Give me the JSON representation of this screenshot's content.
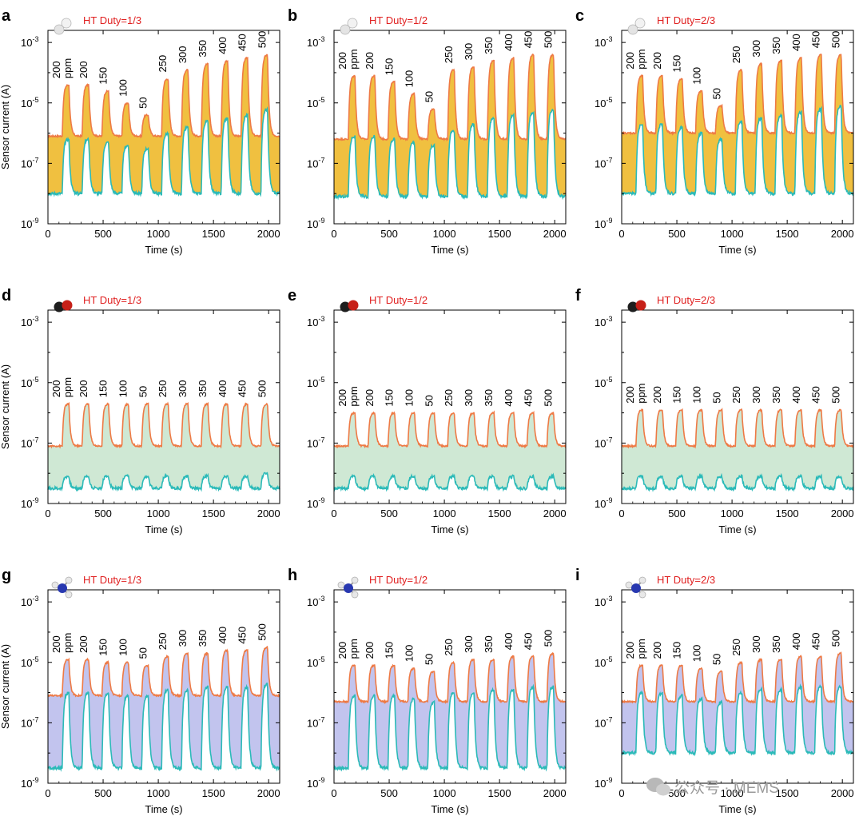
{
  "colors": {
    "high_line": "#ee7a45",
    "low_line": "#2bbab8",
    "fill_h2": "#f0c040",
    "fill_co": "#cfe8d4",
    "fill_nh3": "#c2c4ee",
    "duty_text": "#e02020"
  },
  "labels": {
    "y_axis_title": "Sensor current (A)",
    "x_axis_title": "Time (s)",
    "ppm_unit": "ppm",
    "y_tick_exponent_labels": [
      "-3",
      "-5",
      "-7",
      "-9"
    ],
    "x_tick_labels": [
      "0",
      "500",
      "1000",
      "1500",
      "2000"
    ]
  },
  "watermark": {
    "text": "公众号 · MEMS",
    "icon": "wechat-icon"
  },
  "chart_data": [
    {
      "panel": "a",
      "type": "line",
      "gas": "H2",
      "gas_icon": "h2-molecule-icon",
      "duty_label": "HT Duty=1/3",
      "xlabel": "Time (s)",
      "ylabel": "Sensor current (A)",
      "xlim": [
        0,
        2100
      ],
      "ylim_log10": [
        -9,
        -2.6
      ],
      "concentration_labels": [
        "200",
        "200",
        "150",
        "100",
        "50",
        "250",
        "300",
        "350",
        "400",
        "450",
        "500"
      ],
      "pulse_times": [
        130,
        310,
        490,
        670,
        850,
        1030,
        1210,
        "1390",
        1570,
        1750,
        1930
      ],
      "series": [
        {
          "name": "upper",
          "baseline_log10": -6.1,
          "peak_log10": [
            -4.4,
            -4.4,
            -4.6,
            -5.0,
            -5.4,
            -4.2,
            -3.9,
            -3.7,
            -3.6,
            -3.5,
            -3.4
          ]
        },
        {
          "name": "lower",
          "baseline_log10": -8.0,
          "peak_log10": [
            -6.2,
            -6.2,
            -6.3,
            -6.4,
            -6.5,
            -6.0,
            -5.8,
            -5.6,
            -5.5,
            -5.4,
            -5.2
          ]
        }
      ]
    },
    {
      "panel": "b",
      "type": "line",
      "gas": "H2",
      "gas_icon": "h2-molecule-icon",
      "duty_label": "HT Duty=1/2",
      "xlabel": "Time (s)",
      "ylabel": "Sensor current (A)",
      "xlim": [
        0,
        2100
      ],
      "ylim_log10": [
        -9,
        -2.6
      ],
      "concentration_labels": [
        "200",
        "200",
        "150",
        "100",
        "50",
        "250",
        "300",
        "350",
        "400",
        "450",
        "500"
      ],
      "pulse_times": [
        130,
        310,
        490,
        670,
        850,
        1030,
        1210,
        1390,
        1570,
        1750,
        1930
      ],
      "series": [
        {
          "name": "upper",
          "baseline_log10": -6.2,
          "peak_log10": [
            -4.1,
            -4.1,
            -4.3,
            -4.7,
            -5.2,
            -3.9,
            -3.8,
            -3.6,
            -3.5,
            -3.4,
            -3.4
          ]
        },
        {
          "name": "lower",
          "baseline_log10": -8.1,
          "peak_log10": [
            -6.1,
            -6.1,
            -6.2,
            -6.3,
            -6.4,
            -5.9,
            -5.7,
            -5.5,
            -5.4,
            -5.3,
            -5.2
          ]
        }
      ]
    },
    {
      "panel": "c",
      "type": "line",
      "gas": "H2",
      "gas_icon": "h2-molecule-icon",
      "duty_label": "HT Duty=2/3",
      "xlabel": "Time (s)",
      "ylabel": "Sensor current (A)",
      "xlim": [
        0,
        2100
      ],
      "ylim_log10": [
        -9,
        -2.6
      ],
      "concentration_labels": [
        "200",
        "200",
        "150",
        "100",
        "50",
        "250",
        "300",
        "350",
        "400",
        "450",
        "500"
      ],
      "pulse_times": [
        130,
        310,
        490,
        670,
        850,
        1030,
        1210,
        1390,
        1570,
        1750,
        1930
      ],
      "series": [
        {
          "name": "upper",
          "baseline_log10": -6.0,
          "peak_log10": [
            -4.1,
            -4.1,
            -4.2,
            -4.6,
            -5.1,
            -3.9,
            -3.7,
            -3.6,
            -3.5,
            -3.4,
            -3.4
          ]
        },
        {
          "name": "lower",
          "baseline_log10": -8.0,
          "peak_log10": [
            -5.7,
            -5.7,
            -5.8,
            -6.0,
            -6.2,
            -5.6,
            -5.5,
            -5.4,
            -5.3,
            -5.2,
            -5.1
          ]
        }
      ]
    },
    {
      "panel": "d",
      "type": "line",
      "gas": "CO",
      "gas_icon": "co-molecule-icon",
      "duty_label": "HT Duty=1/3",
      "xlabel": "Time (s)",
      "ylabel": "Sensor current (A)",
      "xlim": [
        0,
        2100
      ],
      "ylim_log10": [
        -9,
        -2.6
      ],
      "concentration_labels": [
        "200",
        "200",
        "150",
        "100",
        "50",
        "250",
        "300",
        "350",
        "400",
        "450",
        "500"
      ],
      "pulse_times": [
        130,
        310,
        490,
        670,
        850,
        1030,
        1210,
        1390,
        1570,
        1750,
        1930
      ],
      "series": [
        {
          "name": "upper",
          "baseline_log10": -7.1,
          "peak_log10": [
            -5.7,
            -5.7,
            -5.7,
            -5.7,
            -5.7,
            -5.7,
            -5.7,
            -5.7,
            -5.7,
            -5.7,
            -5.7
          ]
        },
        {
          "name": "lower",
          "baseline_log10": -8.5,
          "peak_log10": [
            -8.1,
            -8.1,
            -8.1,
            -8.1,
            -8.1,
            -8.1,
            -8.1,
            -8.1,
            -8.1,
            -8.1,
            -8.0
          ]
        }
      ]
    },
    {
      "panel": "e",
      "type": "line",
      "gas": "CO",
      "gas_icon": "co-molecule-icon",
      "duty_label": "HT Duty=1/2",
      "xlabel": "Time (s)",
      "ylabel": "Sensor current (A)",
      "xlim": [
        0,
        2100
      ],
      "ylim_log10": [
        -9,
        -2.6
      ],
      "concentration_labels": [
        "200",
        "200",
        "150",
        "100",
        "50",
        "250",
        "300",
        "350",
        "400",
        "450",
        "500"
      ],
      "pulse_times": [
        130,
        310,
        490,
        670,
        850,
        1030,
        1210,
        1390,
        1570,
        1750,
        1930
      ],
      "series": [
        {
          "name": "upper",
          "baseline_log10": -7.1,
          "peak_log10": [
            -6.0,
            -6.0,
            -6.0,
            -6.0,
            -6.0,
            -6.0,
            -6.0,
            -6.0,
            -6.0,
            -6.0,
            -6.0
          ]
        },
        {
          "name": "lower",
          "baseline_log10": -8.5,
          "peak_log10": [
            -8.1,
            -8.1,
            -8.1,
            -8.1,
            -8.1,
            -8.1,
            -8.1,
            -8.1,
            -8.1,
            -8.1,
            -8.1
          ]
        }
      ]
    },
    {
      "panel": "f",
      "type": "line",
      "gas": "CO",
      "gas_icon": "co-molecule-icon",
      "duty_label": "HT Duty=2/3",
      "xlabel": "Time (s)",
      "ylabel": "Sensor current (A)",
      "xlim": [
        0,
        2100
      ],
      "ylim_log10": [
        -9,
        -2.6
      ],
      "concentration_labels": [
        "200",
        "200",
        "150",
        "100",
        "50",
        "250",
        "300",
        "350",
        "400",
        "450",
        "500"
      ],
      "pulse_times": [
        130,
        310,
        490,
        670,
        850,
        1030,
        1210,
        1390,
        1570,
        1750,
        1930
      ],
      "series": [
        {
          "name": "upper",
          "baseline_log10": -7.1,
          "peak_log10": [
            -5.9,
            -5.9,
            -5.9,
            -5.9,
            -5.9,
            -5.9,
            -5.9,
            -5.9,
            -5.9,
            -5.9,
            -5.9
          ]
        },
        {
          "name": "lower",
          "baseline_log10": -8.5,
          "peak_log10": [
            -8.1,
            -8.1,
            -8.1,
            -8.1,
            -8.1,
            -8.1,
            -8.1,
            -8.1,
            -8.1,
            -8.1,
            -8.1
          ]
        }
      ]
    },
    {
      "panel": "g",
      "type": "line",
      "gas": "NH3",
      "gas_icon": "nh3-molecule-icon",
      "duty_label": "HT Duty=1/3",
      "xlabel": "Time (s)",
      "ylabel": "Sensor current (A)",
      "xlim": [
        0,
        2100
      ],
      "ylim_log10": [
        -9,
        -2.6
      ],
      "concentration_labels": [
        "200",
        "200",
        "150",
        "100",
        "50",
        "250",
        "300",
        "350",
        "400",
        "450",
        "500"
      ],
      "pulse_times": [
        130,
        310,
        490,
        670,
        850,
        1030,
        1210,
        1390,
        1570,
        1750,
        1930
      ],
      "series": [
        {
          "name": "upper",
          "baseline_log10": -6.1,
          "peak_log10": [
            -4.9,
            -4.9,
            -5.0,
            -5.0,
            -5.1,
            -4.8,
            -4.7,
            -4.7,
            -4.6,
            -4.6,
            -4.5
          ]
        },
        {
          "name": "lower",
          "baseline_log10": -8.5,
          "peak_log10": [
            -6.0,
            -6.0,
            -6.0,
            -6.1,
            -6.1,
            -5.9,
            -5.9,
            -5.8,
            -5.8,
            -5.8,
            -5.7
          ]
        }
      ]
    },
    {
      "panel": "h",
      "type": "line",
      "gas": "NH3",
      "gas_icon": "nh3-molecule-icon",
      "duty_label": "HT Duty=1/2",
      "xlabel": "Time (s)",
      "ylabel": "Sensor current (A)",
      "xlim": [
        0,
        2100
      ],
      "ylim_log10": [
        -9,
        -2.6
      ],
      "concentration_labels": [
        "200",
        "200",
        "150",
        "100",
        "50",
        "250",
        "300",
        "350",
        "400",
        "450",
        "500"
      ],
      "pulse_times": [
        130,
        310,
        490,
        670,
        850,
        1030,
        1210,
        1390,
        1570,
        1750,
        1930
      ],
      "series": [
        {
          "name": "upper",
          "baseline_log10": -6.3,
          "peak_log10": [
            -5.1,
            -5.1,
            -5.1,
            -5.2,
            -5.3,
            -5.0,
            -4.9,
            -4.9,
            -4.8,
            -4.8,
            -4.7
          ]
        },
        {
          "name": "lower",
          "baseline_log10": -8.5,
          "peak_log10": [
            -6.1,
            -6.1,
            -6.1,
            -6.2,
            -6.3,
            -6.0,
            -6.0,
            -5.9,
            -5.9,
            -5.8,
            -5.8
          ]
        }
      ]
    },
    {
      "panel": "i",
      "type": "line",
      "gas": "NH3",
      "gas_icon": "nh3-molecule-icon",
      "duty_label": "HT Duty=2/3",
      "xlabel": "Time (s)",
      "ylabel": "Sensor current (A)",
      "xlim": [
        0,
        2100
      ],
      "ylim_log10": [
        -9,
        -2.6
      ],
      "concentration_labels": [
        "200",
        "200",
        "150",
        "100",
        "50",
        "250",
        "300",
        "350",
        "400",
        "450",
        "500"
      ],
      "pulse_times": [
        130,
        310,
        490,
        670,
        850,
        1030,
        1210,
        1390,
        1570,
        1750,
        1930
      ],
      "series": [
        {
          "name": "upper",
          "baseline_log10": -6.3,
          "peak_log10": [
            -5.1,
            -5.1,
            -5.1,
            -5.2,
            -5.3,
            -5.0,
            -4.9,
            -4.9,
            -4.8,
            -4.8,
            -4.7
          ]
        },
        {
          "name": "lower",
          "baseline_log10": -8.0,
          "peak_log10": [
            -6.0,
            -6.0,
            -6.1,
            -6.2,
            -6.3,
            -6.0,
            -5.9,
            -5.9,
            -5.8,
            -5.8,
            -5.8
          ]
        }
      ]
    }
  ]
}
